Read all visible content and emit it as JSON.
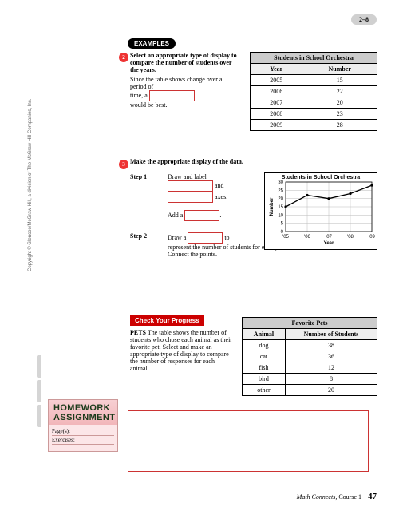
{
  "lesson_num": "2–8",
  "examples_label": "EXAMPLES",
  "bullet2": "2",
  "bullet3": "3",
  "ex2": {
    "prompt": "Select an appropriate type of display to compare the number of students over the years.",
    "body1": "Since the table shows change over a period of",
    "body2": "time, a ",
    "body3": "would be best."
  },
  "orch_table": {
    "caption": "Students in School Orchestra",
    "col1": "Year",
    "col2": "Number",
    "rows": [
      [
        "2005",
        "15"
      ],
      [
        "2006",
        "22"
      ],
      [
        "2007",
        "20"
      ],
      [
        "2008",
        "23"
      ],
      [
        "2009",
        "28"
      ]
    ]
  },
  "ex3": {
    "prompt": "Make the appropriate display of the data.",
    "step1_lbl": "Step 1",
    "step1_a": "Draw and label",
    "step1_b": " and",
    "step1_c": " axes.",
    "step1_d": "Add a ",
    "step2_lbl": "Step 2",
    "step2_a": "Draw a ",
    "step2_b": " to",
    "step2_c": "represent the number of students for each year. Connect the points."
  },
  "chart": {
    "title": "Students in School Orchestra",
    "ylabel": "Number",
    "xlabel": "Year",
    "ylim": [
      0,
      30
    ],
    "ytick_step": 5,
    "xticks": [
      "'05",
      "'06",
      "'07",
      "'08",
      "'09"
    ],
    "values": [
      15,
      22,
      20,
      23,
      28
    ],
    "line_color": "#000000",
    "grid_color": "#bbbbbb",
    "bg": "#ffffff"
  },
  "cyp": {
    "label": "Check Your Progress",
    "lead": "PETS",
    "body": " The table shows the number of students who chose each animal as their favorite pet. Select and make an appropriate type of display to compare the number of responses for each animal."
  },
  "pets_table": {
    "caption": "Favorite Pets",
    "col1": "Animal",
    "col2": "Number of Students",
    "rows": [
      [
        "dog",
        "38"
      ],
      [
        "cat",
        "36"
      ],
      [
        "fish",
        "12"
      ],
      [
        "bird",
        "8"
      ],
      [
        "other",
        "20"
      ]
    ]
  },
  "hw": {
    "line1": "HOMEWORK",
    "line2": "ASSIGNMENT",
    "pages": "Page(s):",
    "ex": "Exercises:"
  },
  "copyright": "Copyright © Glencoe/McGraw-Hill, a division of The McGraw-Hill Companies, Inc.",
  "footer_title": "Math Connects,",
  "footer_course": " Course 1",
  "page_num": "47"
}
